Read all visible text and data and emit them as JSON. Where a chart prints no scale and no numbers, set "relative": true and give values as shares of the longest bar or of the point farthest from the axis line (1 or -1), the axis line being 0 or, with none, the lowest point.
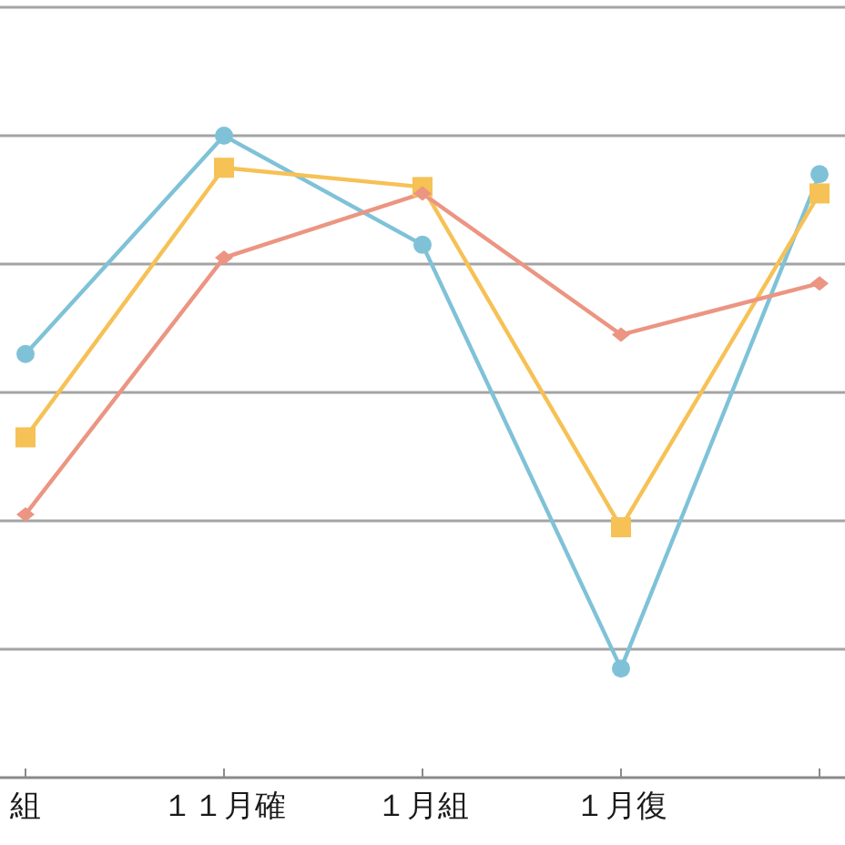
{
  "chart_data": {
    "type": "line",
    "relative": true,
    "grid": "y",
    "line_style": "solid",
    "categories": [
      "組",
      "１１月確",
      "１月組",
      "１月復",
      null
    ],
    "series": [
      {
        "color": "#7fc2d8",
        "marker": "circle",
        "values": [
          0.66,
          1,
          0.83,
          0.17,
          0.94
        ]
      },
      {
        "color": "#f6c155",
        "marker": "square",
        "values": [
          0.53,
          0.95,
          0.92,
          0.39,
          0.91
        ]
      },
      {
        "color": "#eb9582",
        "marker": "diamond",
        "values": [
          0.41,
          0.81,
          0.91,
          0.69,
          0.77
        ]
      }
    ]
  }
}
